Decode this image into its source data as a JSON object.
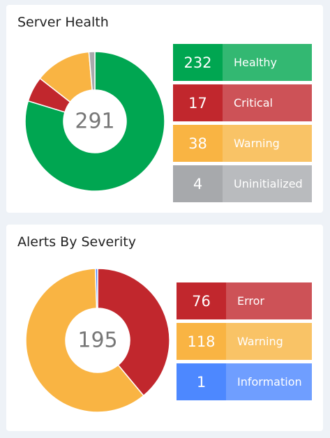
{
  "server_health": {
    "title": "Server Health",
    "total": "291",
    "items": [
      {
        "label": "Healthy",
        "count": "232",
        "value": 232,
        "color": "#00a651",
        "label_color": "#33b872"
      },
      {
        "label": "Critical",
        "count": "17",
        "value": 17,
        "color": "#c1272d",
        "label_color": "#cd5257"
      },
      {
        "label": "Warning",
        "count": "38",
        "value": 38,
        "color": "#f9b443",
        "label_color": "#f9c366"
      },
      {
        "label": "Uninitialized",
        "count": "4",
        "value": 4,
        "color": "#a7a9ac",
        "label_color": "#b9bbbe"
      }
    ]
  },
  "alerts_by_severity": {
    "title": "Alerts By Severity",
    "total": "195",
    "items": [
      {
        "label": "Error",
        "count": "76",
        "value": 76,
        "color": "#c1272d",
        "label_color": "#cd5257"
      },
      {
        "label": "Warning",
        "count": "118",
        "value": 118,
        "color": "#f9b443",
        "label_color": "#f9c366"
      },
      {
        "label": "Information",
        "count": "1",
        "value": 1,
        "color": "#4d88ff",
        "label_color": "#6f9eff"
      }
    ]
  }
}
